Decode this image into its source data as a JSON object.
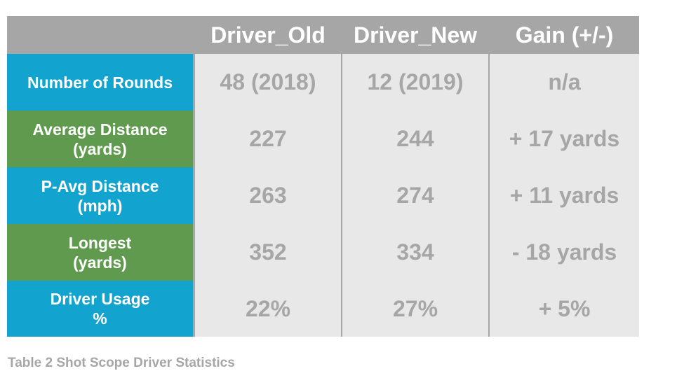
{
  "table": {
    "headers": [
      "Driver_Old",
      "Driver_New",
      "Gain (+/-)"
    ],
    "rows": [
      {
        "label": [
          "Number of Rounds"
        ],
        "values": [
          "48 (2018)",
          "12 (2019)",
          "n/a"
        ]
      },
      {
        "label": [
          "Average Distance",
          "(yards)"
        ],
        "values": [
          "227",
          "244",
          "+ 17 yards"
        ]
      },
      {
        "label": [
          "P-Avg Distance",
          "(mph)"
        ],
        "values": [
          "263",
          "274",
          "+ 11 yards"
        ]
      },
      {
        "label": [
          "Longest",
          "(yards)"
        ],
        "values": [
          "352",
          "334",
          "- 18 yards"
        ]
      },
      {
        "label": [
          "Driver Usage",
          "%"
        ],
        "values": [
          "22%",
          "27%",
          "+ 5%"
        ]
      }
    ]
  },
  "caption": "Table 2 Shot Scope Driver Statistics",
  "colors": {
    "header_bg": "#a6a6a6",
    "label_blue": "#12a3cf",
    "label_green": "#5f9a4f",
    "cell_bg": "#e8e8e8",
    "value_text": "#a6a6a6"
  }
}
